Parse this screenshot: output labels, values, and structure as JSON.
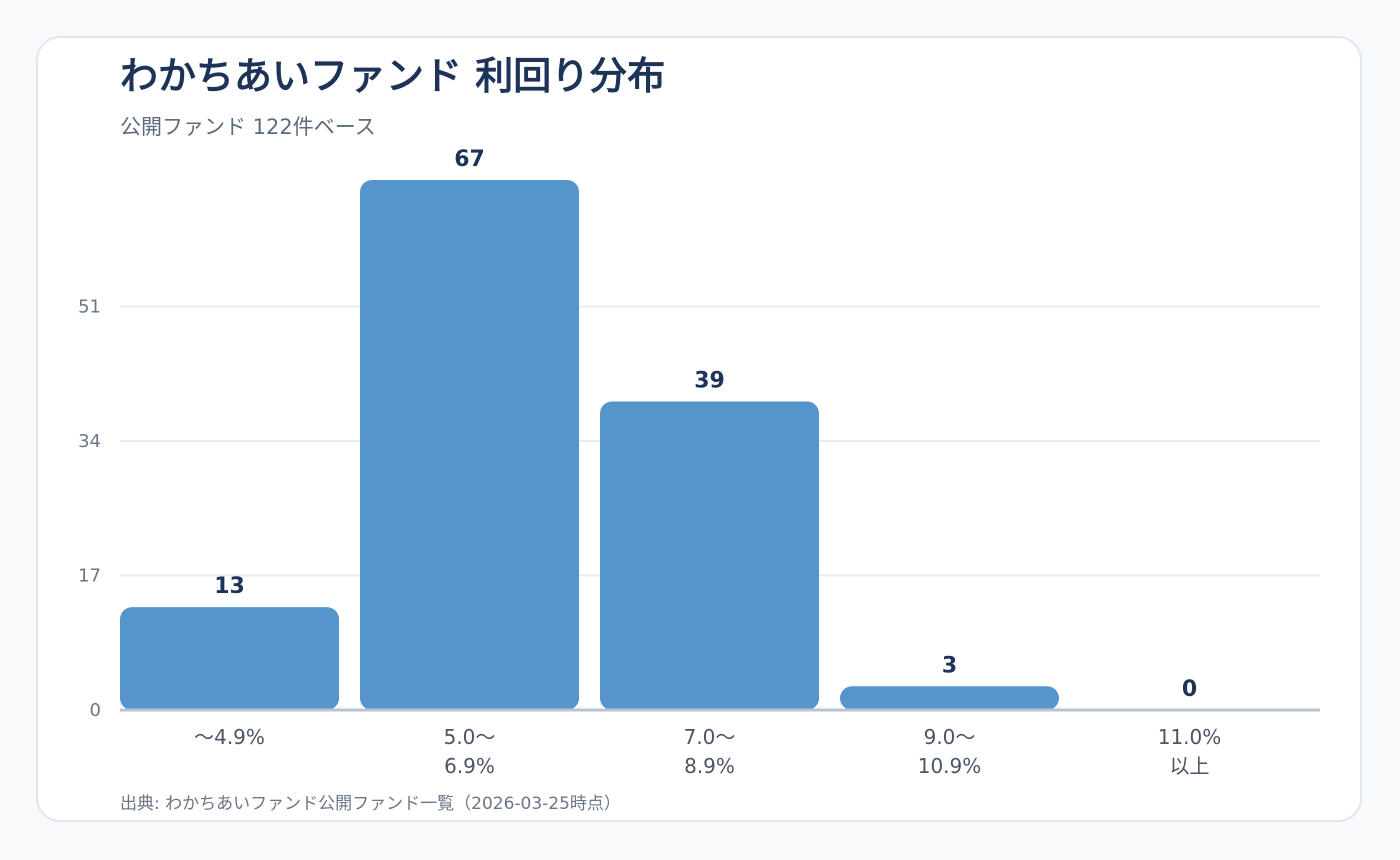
{
  "chart_data": {
    "type": "bar",
    "title": "わかちあいファンド 利回り分布",
    "subtitle": "公開ファンド 122件ベース",
    "source": "出典: わかちあいファンド公開ファンド一覧（2026-03-25時点）",
    "categories": [
      [
        "〜4.9%"
      ],
      [
        "5.0〜",
        "6.9%"
      ],
      [
        "7.0〜",
        "8.9%"
      ],
      [
        "9.0〜",
        "10.9%"
      ],
      [
        "11.0%",
        "以上"
      ]
    ],
    "values": [
      13,
      67,
      39,
      3,
      0
    ],
    "yticks": [
      0,
      17,
      34,
      51
    ],
    "ylim": [
      0,
      67
    ],
    "grid": true,
    "legend": "none",
    "colors": {
      "bar": "#5595cc",
      "grid": "#e8ecf1",
      "axis": "#b9c3d0"
    }
  }
}
